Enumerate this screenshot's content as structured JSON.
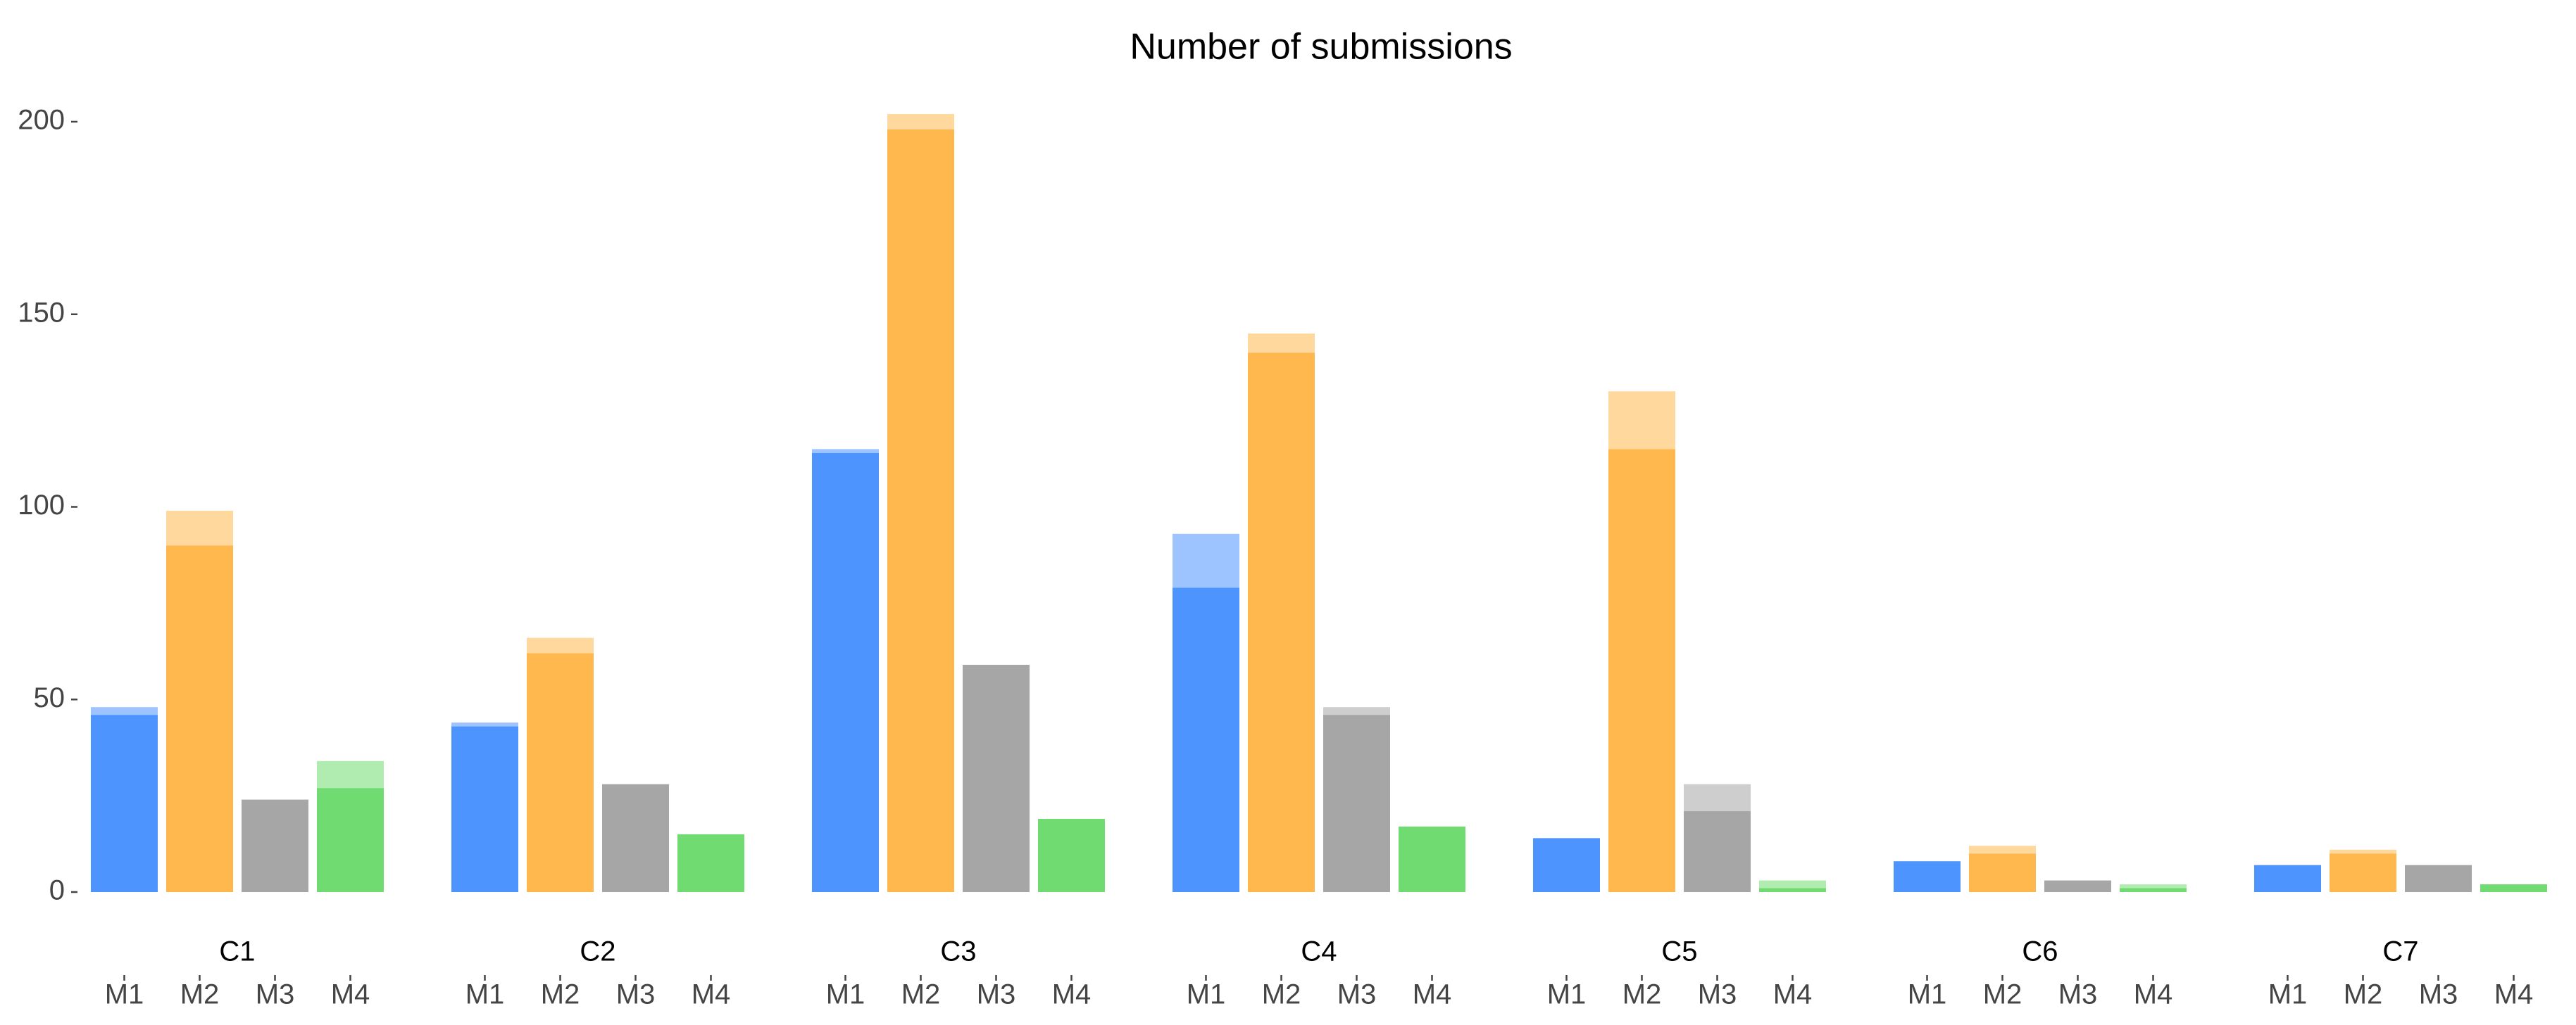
{
  "chart_data": {
    "type": "grouped-stacked-bar",
    "title": "Number of submissions",
    "colors": [
      "#4d94ff",
      "#ffb84d",
      "#a6a6a6",
      "#70db70"
    ],
    "ylim": [
      0,
      205
    ],
    "yticks": [
      0,
      50,
      100,
      150,
      200
    ],
    "groups": [
      {
        "label": "C1",
        "bars": [
          {
            "label": "M1",
            "values": [
              46,
              2
            ]
          },
          {
            "label": "M2",
            "values": [
              90,
              9
            ]
          },
          {
            "label": "M3",
            "values": [
              24
            ]
          },
          {
            "label": "M4",
            "values": [
              27,
              7
            ]
          }
        ]
      },
      {
        "label": "C2",
        "bars": [
          {
            "label": "M1",
            "values": [
              43,
              1
            ]
          },
          {
            "label": "M2",
            "values": [
              62,
              4
            ]
          },
          {
            "label": "M3",
            "values": [
              28
            ]
          },
          {
            "label": "M4",
            "values": [
              15
            ]
          }
        ]
      },
      {
        "label": "C3",
        "bars": [
          {
            "label": "M1",
            "values": [
              114,
              1
            ]
          },
          {
            "label": "M2",
            "values": [
              198,
              4
            ]
          },
          {
            "label": "M3",
            "values": [
              59
            ]
          },
          {
            "label": "M4",
            "values": [
              19
            ]
          }
        ]
      },
      {
        "label": "C4",
        "bars": [
          {
            "label": "M1",
            "values": [
              79,
              14
            ]
          },
          {
            "label": "M2",
            "values": [
              140,
              5
            ]
          },
          {
            "label": "M3",
            "values": [
              46,
              2
            ]
          },
          {
            "label": "M4",
            "values": [
              17
            ]
          }
        ]
      },
      {
        "label": "C5",
        "bars": [
          {
            "label": "M1",
            "values": [
              14
            ]
          },
          {
            "label": "M2",
            "values": [
              115,
              15
            ]
          },
          {
            "label": "M3",
            "values": [
              21,
              7
            ]
          },
          {
            "label": "M4",
            "values": [
              1,
              2
            ]
          }
        ]
      },
      {
        "label": "C6",
        "bars": [
          {
            "label": "M1",
            "values": [
              8
            ]
          },
          {
            "label": "M2",
            "values": [
              10,
              2
            ]
          },
          {
            "label": "M3",
            "values": [
              3
            ]
          },
          {
            "label": "M4",
            "values": [
              1,
              1
            ]
          }
        ]
      },
      {
        "label": "C7",
        "bars": [
          {
            "label": "M1",
            "values": [
              7
            ]
          },
          {
            "label": "M2",
            "values": [
              10,
              1
            ]
          },
          {
            "label": "M3",
            "values": [
              7
            ]
          },
          {
            "label": "M4",
            "values": [
              2
            ]
          }
        ]
      }
    ]
  }
}
